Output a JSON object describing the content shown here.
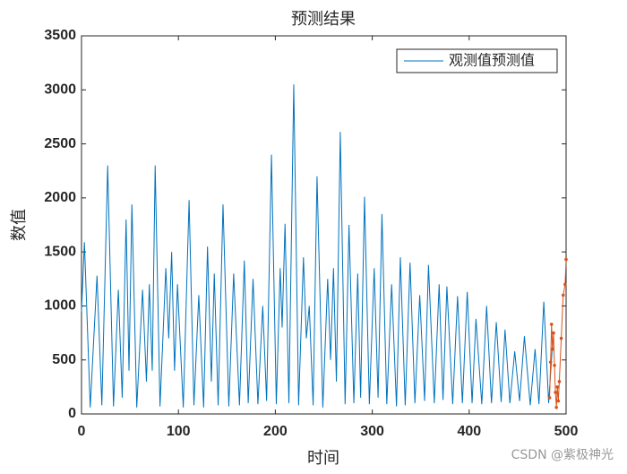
{
  "chart_data": {
    "type": "line",
    "title": "预测结果",
    "x_label": "时间",
    "y_label": "数值",
    "xlim": [
      0,
      500
    ],
    "xticks": [
      0,
      100,
      200,
      300,
      400,
      500
    ],
    "ylim": [
      0,
      3500
    ],
    "yticks": [
      0,
      500,
      1000,
      1500,
      2000,
      2500,
      3000,
      3500
    ],
    "legend": "top-right",
    "watermark": "CSDN @紫极神光",
    "series": [
      {
        "name": "观测值预测值",
        "color": "#0072bd",
        "markers": false,
        "x": [
          0,
          3,
          9,
          16,
          21,
          27,
          33,
          38,
          42,
          46,
          49,
          52,
          57,
          63,
          67,
          70,
          73,
          76,
          81,
          87,
          90,
          93,
          96,
          99,
          105,
          111,
          116,
          121,
          126,
          130,
          134,
          137,
          141,
          146,
          152,
          157,
          163,
          168,
          172,
          177,
          182,
          187,
          191,
          196,
          201,
          205,
          207,
          210,
          214,
          219,
          224,
          229,
          232,
          235,
          239,
          243,
          249,
          254,
          257,
          260,
          263,
          267,
          272,
          276,
          281,
          285,
          288,
          292,
          297,
          302,
          306,
          310,
          315,
          320,
          325,
          329,
          334,
          339,
          344,
          349,
          354,
          358,
          364,
          369,
          373,
          377,
          383,
          388,
          393,
          398,
          403,
          407,
          413,
          418,
          423,
          428,
          433,
          437,
          442,
          447,
          452,
          457,
          463,
          468,
          472,
          477,
          482,
          486
        ],
        "values": [
          950,
          1590,
          60,
          1280,
          80,
          2300,
          70,
          1150,
          150,
          1800,
          400,
          1940,
          60,
          1150,
          300,
          1200,
          400,
          2300,
          70,
          1350,
          700,
          1500,
          400,
          1200,
          60,
          1980,
          80,
          1100,
          60,
          1550,
          300,
          1300,
          80,
          1940,
          70,
          1300,
          80,
          1420,
          100,
          1250,
          90,
          1000,
          120,
          2400,
          90,
          1350,
          800,
          1760,
          100,
          3050,
          80,
          1450,
          700,
          1000,
          80,
          2200,
          60,
          1250,
          500,
          1350,
          300,
          2610,
          90,
          1750,
          100,
          1300,
          150,
          2010,
          90,
          1350,
          150,
          1850,
          90,
          1200,
          70,
          1450,
          80,
          1400,
          100,
          1100,
          120,
          1380,
          100,
          1200,
          130,
          1180,
          90,
          1090,
          100,
          1130,
          100,
          880,
          90,
          1000,
          100,
          850,
          110,
          780,
          100,
          580,
          120,
          720,
          80,
          600,
          90,
          1040,
          100,
          650
        ]
      },
      {
        "color": "#d95319",
        "markers": true,
        "x": [
          483,
          484,
          485,
          486,
          487,
          488,
          489,
          490,
          491,
          492,
          493,
          495,
          497,
          499,
          500
        ],
        "values": [
          150,
          480,
          830,
          600,
          750,
          450,
          200,
          60,
          250,
          120,
          300,
          700,
          1100,
          1200,
          1430
        ]
      }
    ]
  }
}
